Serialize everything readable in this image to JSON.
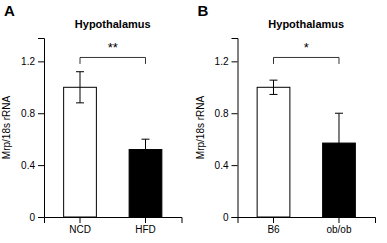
{
  "chart_data": [
    {
      "type": "bar",
      "title": "Hypothalamus",
      "ylabel": "Mrp/18s rRNA",
      "categories": [
        "NCD",
        "HFD"
      ],
      "values": [
        1.0,
        0.52
      ],
      "errors": [
        0.12,
        0.08
      ],
      "colors": [
        "white",
        "black"
      ],
      "ylim": [
        0,
        1.38
      ],
      "yticks": [
        0,
        0.4,
        0.8,
        1.2
      ],
      "grid": false,
      "annotations": [
        {
          "text": "A"
        },
        {
          "text": "**",
          "y": 1.27,
          "line_y": 1.23,
          "drop": 0.05
        }
      ]
    },
    {
      "type": "bar",
      "title": "Hypothalamus",
      "ylabel": "Mrp/18s rRNA",
      "categories": [
        "B6",
        "ob/ob"
      ],
      "values": [
        1.0,
        0.57
      ],
      "errors": [
        0.055,
        0.23
      ],
      "colors": [
        "white",
        "black"
      ],
      "ylim": [
        0,
        1.38
      ],
      "yticks": [
        0,
        0.4,
        0.8,
        1.2
      ],
      "grid": false,
      "annotations": [
        {
          "text": "B"
        },
        {
          "text": "*",
          "y": 1.27,
          "line_y": 1.23,
          "drop": 0.05
        }
      ]
    }
  ]
}
